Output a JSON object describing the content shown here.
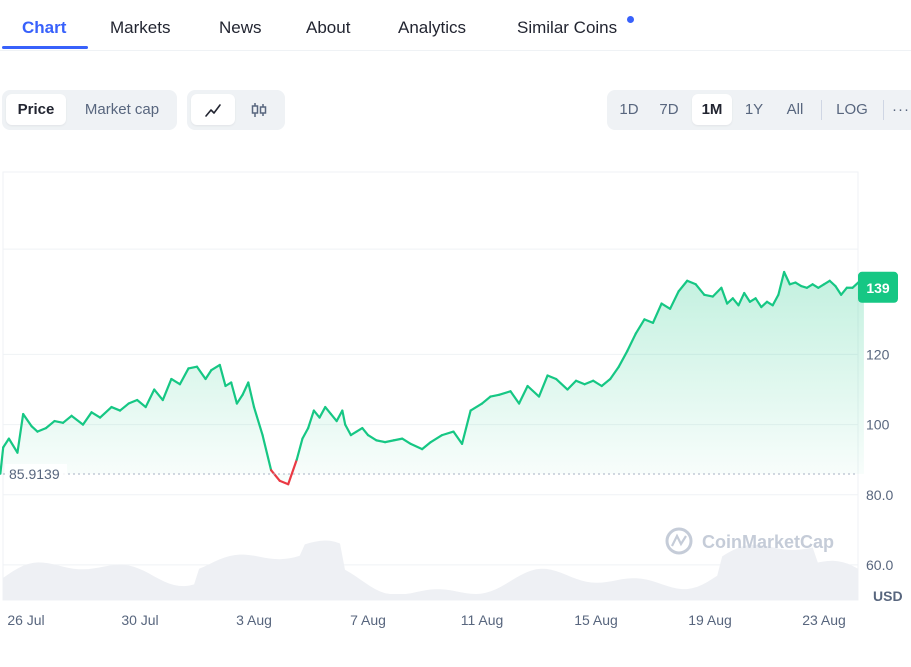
{
  "tabs": [
    {
      "label": "Chart"
    },
    {
      "label": "Markets"
    },
    {
      "label": "News"
    },
    {
      "label": "About"
    },
    {
      "label": "Analytics"
    },
    {
      "label": "Similar Coins"
    }
  ],
  "toolbar": {
    "price_label": "Price",
    "market_cap_label": "Market cap",
    "line_icon": "line-chart-icon",
    "candle_icon": "candlestick-icon",
    "ranges": [
      "1D",
      "7D",
      "1M",
      "1Y",
      "All"
    ],
    "selected_range": "1M",
    "log_label": "LOG",
    "more_icon": "more-icon"
  },
  "colors": {
    "accent": "#3861fb",
    "up": "#16c784",
    "down": "#ea3943",
    "grid": "#eff2f5"
  },
  "watermark": "CoinMarketCap",
  "chart_data": {
    "type": "line",
    "currency_label": "USD",
    "baseline_label": "85.9139",
    "baseline_value": 85.9139,
    "current_price_label": "139",
    "current_price": 139,
    "y_ticks": [
      {
        "value": 120,
        "label": "120"
      },
      {
        "value": 100,
        "label": "100"
      },
      {
        "value": 80,
        "label": "80.0"
      },
      {
        "value": 60,
        "label": "60.0"
      }
    ],
    "ylim": [
      50,
      172
    ],
    "x_ticks": [
      {
        "day": 0,
        "label": "26 Jul"
      },
      {
        "day": 4,
        "label": "30 Jul"
      },
      {
        "day": 8,
        "label": "3 Aug"
      },
      {
        "day": 12,
        "label": "7 Aug"
      },
      {
        "day": 16,
        "label": "11 Aug"
      },
      {
        "day": 20,
        "label": "15 Aug"
      },
      {
        "day": 24,
        "label": "19 Aug"
      },
      {
        "day": 28,
        "label": "23 Aug"
      }
    ],
    "series": [
      {
        "x": [
          -0.9,
          -0.8,
          -0.6,
          -0.3,
          -0.1,
          0.2,
          0.4,
          0.7,
          1.0,
          1.3,
          1.6,
          2.0,
          2.3,
          2.6,
          3.0,
          3.3,
          3.6,
          3.9,
          4.2,
          4.5,
          4.8,
          5.1,
          5.4,
          5.7,
          6.0,
          6.3,
          6.5,
          6.8,
          7.0,
          7.2,
          7.4,
          7.6,
          7.8,
          8.0,
          8.3,
          8.6,
          8.9,
          9.2,
          9.5,
          9.7,
          9.9,
          10.1,
          10.3,
          10.5,
          10.7,
          10.9,
          11.1,
          11.2,
          11.4,
          11.6,
          11.8,
          12.0,
          12.3,
          12.6,
          12.9,
          13.2,
          13.5,
          13.9,
          14.2,
          14.6,
          15.0,
          15.3,
          15.6,
          16.0,
          16.3,
          16.6,
          17.0,
          17.3,
          17.6,
          18.0,
          18.3,
          18.6,
          19.0,
          19.3,
          19.6,
          19.9,
          20.2,
          20.5,
          20.8,
          21.1,
          21.4,
          21.7,
          22.0,
          22.3,
          22.6,
          22.9,
          23.2,
          23.5,
          23.8,
          24.1,
          24.4,
          24.6,
          24.8,
          25.0,
          25.2,
          25.4,
          25.6,
          25.8,
          26.0,
          26.2,
          26.4,
          26.6,
          26.8,
          27.0,
          27.2,
          27.4,
          27.6,
          27.8,
          28.0,
          28.2,
          28.4,
          28.6,
          28.8,
          29.0,
          29.2,
          29.4
        ],
        "y": [
          86.0,
          93.5,
          96.0,
          92.0,
          103.0,
          99.5,
          98.0,
          99.0,
          101.0,
          100.5,
          102.5,
          100.0,
          103.5,
          102.0,
          105.0,
          104.0,
          106.0,
          107.0,
          105.0,
          110.0,
          107.0,
          113.0,
          111.5,
          116.0,
          116.5,
          113.0,
          115.5,
          117.0,
          111.0,
          112.0,
          106.0,
          108.5,
          112.0,
          105.0,
          97.0,
          87.0,
          84.0,
          83.0,
          90.0,
          96.0,
          99.0,
          104.0,
          102.0,
          105.0,
          103.0,
          101.0,
          104.0,
          100.0,
          97.0,
          98.0,
          99.0,
          97.0,
          95.5,
          95.0,
          95.5,
          96.0,
          94.5,
          93.0,
          95.0,
          97.0,
          98.0,
          94.5,
          104.0,
          106.0,
          108.0,
          108.5,
          109.5,
          106.0,
          111.0,
          108.0,
          114.0,
          113.0,
          110.0,
          112.5,
          111.5,
          112.5,
          111.0,
          113.0,
          116.5,
          121.0,
          126.0,
          130.0,
          129.0,
          134.5,
          133.0,
          138.0,
          141.0,
          140.0,
          137.0,
          136.5,
          139.0,
          134.5,
          136.0,
          134.0,
          137.5,
          135.0,
          136.0,
          133.5,
          135.0,
          134.0,
          137.0,
          143.5,
          140.0,
          140.5,
          139.5,
          139.0,
          140.0,
          139.0,
          140.0,
          141.0,
          139.5,
          137.0,
          139.0,
          139.0,
          140.5,
          139.0
        ]
      }
    ]
  }
}
